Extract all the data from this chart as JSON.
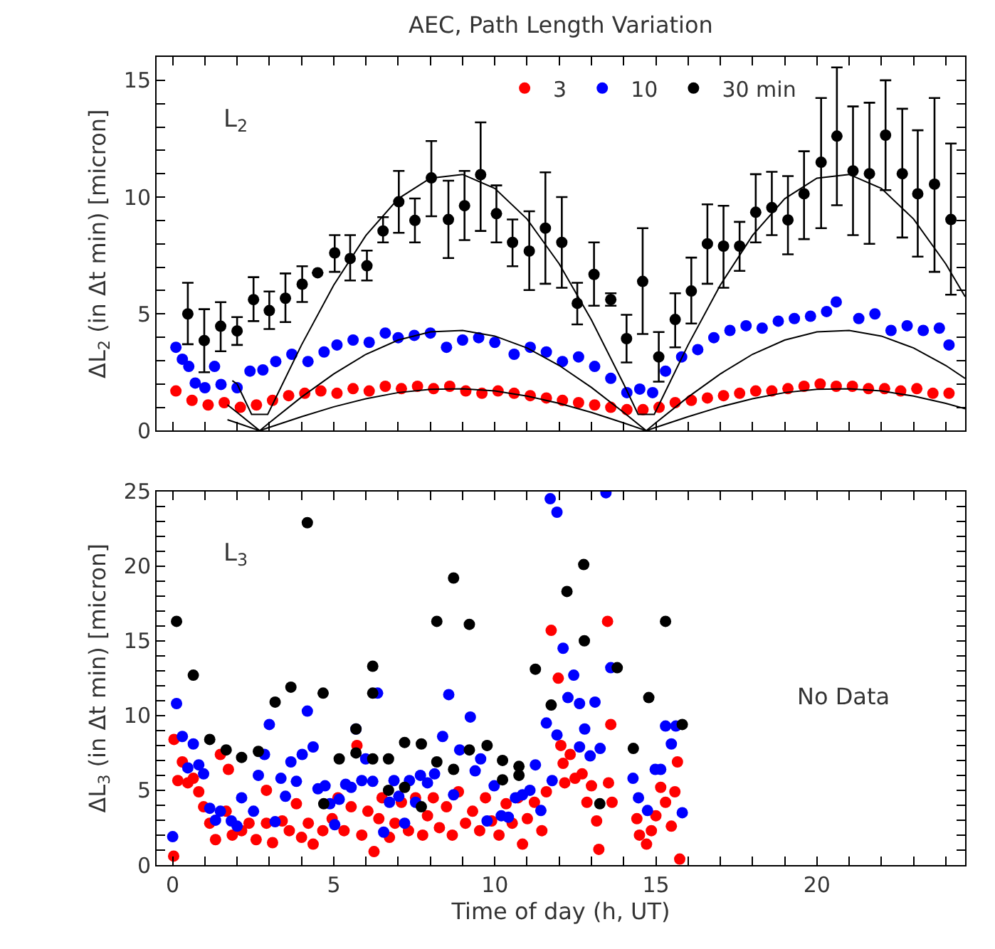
{
  "chart_data": [
    {
      "type": "scatter",
      "title": "AEC, Path Length Variation",
      "ylabel": "ΔL$_{2}$ (in Δt min) [micron]",
      "annotations": [
        "L$_{2}$"
      ],
      "legend": "top",
      "marker": "circle",
      "tick_labels": "y",
      "grid": false,
      "xlim": [
        -0.5,
        24.6
      ],
      "ylim": [
        0,
        16
      ],
      "xticks": [
        0,
        {
          "value": 1,
          "label": null
        },
        {
          "value": 2,
          "label": null
        },
        {
          "value": 3,
          "label": null
        },
        {
          "value": 4,
          "label": null
        },
        5,
        {
          "value": 6,
          "label": null
        },
        {
          "value": 7,
          "label": null
        },
        {
          "value": 8,
          "label": null
        },
        {
          "value": 9,
          "label": null
        },
        10,
        {
          "value": 11,
          "label": null
        },
        {
          "value": 12,
          "label": null
        },
        {
          "value": 13,
          "label": null
        },
        {
          "value": 14,
          "label": null
        },
        15,
        {
          "value": 16,
          "label": null
        },
        {
          "value": 17,
          "label": null
        },
        {
          "value": 18,
          "label": null
        },
        {
          "value": 19,
          "label": null
        },
        20,
        {
          "value": 21,
          "label": null
        },
        {
          "value": 22,
          "label": null
        },
        {
          "value": 23,
          "label": null
        },
        {
          "value": 24,
          "label": null
        }
      ],
      "yticks": [
        0,
        {
          "value": 1,
          "label": null
        },
        {
          "value": 2,
          "label": null
        },
        {
          "value": 3,
          "label": null
        },
        {
          "value": 4,
          "label": null
        },
        5,
        {
          "value": 6,
          "label": null
        },
        {
          "value": 7,
          "label": null
        },
        {
          "value": 8,
          "label": null
        },
        {
          "value": 9,
          "label": null
        },
        10,
        {
          "value": 11,
          "label": null
        },
        {
          "value": 12,
          "label": null
        },
        {
          "value": 13,
          "label": null
        },
        {
          "value": 14,
          "label": null
        },
        15,
        {
          "value": 16,
          "label": null
        }
      ],
      "series": [
        {
          "name": "3",
          "color": "#ff0000",
          "x": [
            0.1,
            0.6,
            1.1,
            1.6,
            2.1,
            2.6,
            3.1,
            3.6,
            4.1,
            4.6,
            5.1,
            5.6,
            6.1,
            6.6,
            7.1,
            7.6,
            8.1,
            8.6,
            9.1,
            9.6,
            10.1,
            10.6,
            11.1,
            11.6,
            12.1,
            12.6,
            13.1,
            13.6,
            14.1,
            14.6,
            15.1,
            15.6,
            16.1,
            16.6,
            17.1,
            17.6,
            18.1,
            18.6,
            19.1,
            19.6,
            20.1,
            20.6,
            21.1,
            21.6,
            22.1,
            22.6,
            23.1,
            23.6,
            24.1
          ],
          "values": [
            1.7,
            1.3,
            1.1,
            1.2,
            1.0,
            1.1,
            1.3,
            1.5,
            1.6,
            1.7,
            1.6,
            1.8,
            1.7,
            1.9,
            1.8,
            1.9,
            1.8,
            1.9,
            1.7,
            1.6,
            1.7,
            1.6,
            1.5,
            1.4,
            1.3,
            1.2,
            1.1,
            1.0,
            0.9,
            0.9,
            1.0,
            1.2,
            1.3,
            1.4,
            1.5,
            1.6,
            1.7,
            1.7,
            1.8,
            1.9,
            2.0,
            1.9,
            1.9,
            1.8,
            1.8,
            1.7,
            1.8,
            1.6,
            1.6
          ]
        },
        {
          "name": "10",
          "color": "#0000ff",
          "x": [
            0.1,
            0.3,
            0.5,
            0.7,
            1.0,
            1.3,
            1.5,
            2.0,
            2.4,
            2.8,
            3.2,
            3.7,
            4.2,
            4.7,
            5.1,
            5.6,
            6.1,
            6.6,
            7.0,
            7.5,
            8.0,
            8.5,
            9.0,
            9.5,
            10.0,
            10.6,
            11.1,
            11.6,
            12.1,
            12.6,
            13.1,
            13.6,
            14.1,
            14.5,
            14.9,
            15.3,
            15.8,
            16.3,
            16.8,
            17.3,
            17.8,
            18.3,
            18.8,
            19.3,
            19.8,
            20.3,
            20.6,
            21.3,
            21.8,
            22.3,
            22.8,
            23.3,
            23.8,
            24.1
          ],
          "values": [
            3.57,
            3.06,
            2.75,
            2.04,
            1.84,
            2.75,
            1.98,
            1.84,
            2.55,
            2.6,
            2.96,
            3.27,
            2.96,
            3.37,
            3.67,
            3.88,
            3.78,
            4.18,
            3.98,
            4.08,
            4.18,
            3.57,
            3.88,
            3.98,
            3.78,
            3.27,
            3.57,
            3.37,
            2.96,
            3.16,
            2.75,
            2.24,
            1.63,
            1.78,
            1.63,
            2.55,
            3.16,
            3.47,
            3.98,
            4.29,
            4.49,
            4.39,
            4.69,
            4.8,
            4.9,
            5.1,
            5.51,
            4.8,
            5.0,
            4.29,
            4.49,
            4.29,
            4.39,
            3.67
          ]
        },
        {
          "name": "30 min",
          "color": "#000000",
          "x": [
            0.47,
            0.98,
            1.49,
            2.0,
            2.51,
            3.0,
            3.5,
            4.02,
            4.5,
            5.03,
            5.51,
            6.03,
            6.53,
            7.02,
            7.52,
            8.03,
            8.56,
            9.06,
            9.56,
            10.05,
            10.55,
            11.07,
            11.57,
            12.08,
            12.56,
            13.08,
            13.6,
            14.09,
            14.59,
            15.09,
            15.6,
            16.1,
            16.6,
            17.1,
            17.6,
            18.1,
            18.6,
            19.1,
            19.6,
            20.13,
            20.62,
            21.12,
            21.63,
            22.13,
            22.65,
            23.13,
            23.65,
            24.16
          ],
          "values": [
            5.0,
            3.86,
            4.47,
            4.27,
            5.61,
            5.14,
            5.67,
            6.27,
            6.76,
            7.61,
            7.37,
            7.06,
            8.55,
            9.8,
            9.0,
            10.82,
            9.04,
            9.63,
            10.96,
            9.29,
            8.06,
            7.69,
            8.67,
            8.06,
            5.45,
            6.69,
            5.61,
            3.94,
            6.39,
            3.16,
            4.76,
            5.98,
            8.0,
            7.9,
            7.9,
            9.35,
            9.55,
            9.02,
            10.14,
            11.49,
            12.61,
            11.12,
            11.0,
            12.65,
            11.0,
            10.14,
            10.55,
            9.04
          ],
          "errors": [
            [
              3.7,
              6.33
            ],
            [
              2.5,
              5.2
            ],
            [
              3.4,
              5.5
            ],
            [
              3.67,
              4.86
            ],
            [
              4.69,
              6.57
            ],
            [
              4.35,
              5.96
            ],
            [
              4.65,
              6.73
            ],
            [
              5.51,
              7.04
            ],
            null,
            [
              6.8,
              8.37
            ],
            [
              6.43,
              8.37
            ],
            [
              6.43,
              7.71
            ],
            [
              8.06,
              9.14
            ],
            [
              8.47,
              11.12
            ],
            [
              8.06,
              9.94
            ],
            [
              9.18,
              12.4
            ],
            [
              7.39,
              10.7
            ],
            [
              8.16,
              11.12
            ],
            [
              8.55,
              13.2
            ],
            [
              8.06,
              10.5
            ],
            [
              7.04,
              9.04
            ],
            [
              6.02,
              9.39
            ],
            [
              6.29,
              11.06
            ],
            [
              6.12,
              10.0
            ],
            [
              4.55,
              6.33
            ],
            [
              5.35,
              8.06
            ],
            [
              5.35,
              5.88
            ],
            [
              2.92,
              4.96
            ],
            [
              4.14,
              8.67
            ],
            [
              2.1,
              4.22
            ],
            [
              3.57,
              5.88
            ],
            [
              4.59,
              7.41
            ],
            [
              6.29,
              9.69
            ],
            [
              6.12,
              9.63
            ],
            [
              6.84,
              8.94
            ],
            [
              8.06,
              10.98
            ],
            [
              8.37,
              11.08
            ],
            [
              7.55,
              10.9
            ],
            [
              8.2,
              11.96
            ],
            [
              8.67,
              14.24
            ],
            [
              9.65,
              15.55
            ],
            [
              8.37,
              13.88
            ],
            [
              8.0,
              14.04
            ],
            [
              10.3,
              15.0
            ],
            [
              8.27,
              13.78
            ],
            [
              7.45,
              12.86
            ],
            [
              6.8,
              14.24
            ],
            [
              5.82,
              12.29
            ]
          ]
        },
        {
          "type": "line",
          "marker": "none",
          "color": "#000000",
          "x": [
            1.7,
            2,
            2.7,
            3,
            4,
            5,
            6,
            7,
            8,
            9,
            10,
            11,
            12,
            13,
            14,
            14.7,
            15,
            16,
            17,
            18,
            19,
            20,
            21,
            22,
            23,
            24,
            24.6
          ],
          "values": [
            0.47,
            0.33,
            0,
            0.14,
            0.6,
            1.02,
            1.37,
            1.63,
            1.77,
            1.79,
            1.7,
            1.48,
            1.17,
            0.78,
            0.33,
            0,
            0.14,
            0.6,
            1.02,
            1.37,
            1.63,
            1.77,
            1.79,
            1.7,
            1.48,
            1.17,
            0.94
          ]
        },
        {
          "type": "line",
          "marker": "none",
          "color": "#000000",
          "x": [
            1.7,
            2,
            2.7,
            3,
            4,
            5,
            6,
            7,
            8,
            9,
            10,
            11,
            12,
            13,
            14,
            14.7,
            15,
            16,
            17,
            18,
            19,
            20,
            21,
            22,
            23,
            24,
            24.6
          ],
          "values": [
            1.11,
            0.78,
            0,
            0.34,
            1.44,
            2.43,
            3.27,
            3.88,
            4.23,
            4.29,
            4.05,
            3.54,
            2.79,
            1.85,
            0.78,
            0,
            0.34,
            1.44,
            2.43,
            3.27,
            3.88,
            4.23,
            4.29,
            4.05,
            3.54,
            2.79,
            2.24
          ]
        },
        {
          "type": "line",
          "marker": "none",
          "color": "#000000",
          "x": [
            1.85,
            2,
            2.45,
            2.95,
            4,
            5,
            6,
            7,
            8,
            9,
            10,
            11,
            12,
            13,
            14,
            14.45,
            14.95,
            16,
            17,
            18,
            19,
            20,
            21,
            22,
            23,
            24,
            24.6
          ],
          "values": [
            2.14,
            2.0,
            0.7,
            0.7,
            3.67,
            6.23,
            8.36,
            9.93,
            10.81,
            10.97,
            10.37,
            9.06,
            7.14,
            4.74,
            2.0,
            0.7,
            0.7,
            3.67,
            6.23,
            8.36,
            9.93,
            10.81,
            10.97,
            10.37,
            9.06,
            7.14,
            5.74
          ]
        }
      ]
    },
    {
      "type": "scatter",
      "xlabel": "Time of day (h, UT)",
      "ylabel": "ΔL$_{3}$ (in Δt min) [micron]",
      "annotations": [
        "L$_{3}$",
        "No Data"
      ],
      "marker": "circle",
      "grid": false,
      "xlim": [
        -0.5,
        24.6
      ],
      "ylim": [
        0,
        25
      ],
      "xticks": [
        0,
        {
          "value": 1,
          "label": null
        },
        {
          "value": 2,
          "label": null
        },
        {
          "value": 3,
          "label": null
        },
        {
          "value": 4,
          "label": null
        },
        5,
        {
          "value": 6,
          "label": null
        },
        {
          "value": 7,
          "label": null
        },
        {
          "value": 8,
          "label": null
        },
        {
          "value": 9,
          "label": null
        },
        10,
        {
          "value": 11,
          "label": null
        },
        {
          "value": 12,
          "label": null
        },
        {
          "value": 13,
          "label": null
        },
        {
          "value": 14,
          "label": null
        },
        15,
        {
          "value": 16,
          "label": null
        },
        {
          "value": 17,
          "label": null
        },
        {
          "value": 18,
          "label": null
        },
        {
          "value": 19,
          "label": null
        },
        20,
        {
          "value": 21,
          "label": null
        },
        {
          "value": 22,
          "label": null
        },
        {
          "value": 23,
          "label": null
        },
        {
          "value": 24,
          "label": null
        }
      ],
      "yticks": [
        0,
        {
          "value": 1,
          "label": null
        },
        {
          "value": 2,
          "label": null
        },
        {
          "value": 3,
          "label": null
        },
        {
          "value": 4,
          "label": null
        },
        5,
        {
          "value": 6,
          "label": null
        },
        {
          "value": 7,
          "label": null
        },
        {
          "value": 8,
          "label": null
        },
        {
          "value": 9,
          "label": null
        },
        10,
        {
          "value": 11,
          "label": null
        },
        {
          "value": 12,
          "label": null
        },
        {
          "value": 13,
          "label": null
        },
        {
          "value": 14,
          "label": null
        },
        15,
        {
          "value": 16,
          "label": null
        },
        {
          "value": 17,
          "label": null
        },
        {
          "value": 18,
          "label": null
        },
        {
          "value": 19,
          "label": null
        },
        20,
        {
          "value": 21,
          "label": null
        },
        {
          "value": 22,
          "label": null
        },
        {
          "value": 23,
          "label": null
        },
        {
          "value": 24,
          "label": null
        },
        25
      ],
      "series": [
        {
          "color": "#ff0000",
          "x": [
            0.04,
            0.03,
            0.16,
            0.3,
            0.47,
            0.64,
            0.81,
            0.96,
            1.15,
            1.33,
            1.48,
            1.66,
            1.73,
            1.85,
            2.14,
            2.37,
            2.59,
            2.91,
            2.91,
            3.1,
            3.4,
            3.62,
            3.84,
            4.0,
            4.21,
            4.36,
            4.66,
            4.95,
            5.13,
            5.32,
            5.54,
            5.72,
            5.87,
            6.06,
            6.25,
            6.4,
            6.5,
            6.73,
            6.9,
            7.1,
            7.32,
            7.54,
            7.76,
            7.91,
            8.09,
            8.28,
            8.5,
            8.68,
            8.87,
            9.09,
            9.31,
            9.53,
            9.71,
            9.9,
            10.13,
            10.35,
            10.54,
            10.72,
            10.86,
            11.01,
            11.23,
            11.46,
            11.6,
            11.75,
            11.97,
            12.05,
            12.17,
            12.12,
            12.34,
            12.49,
            12.71,
            12.86,
            13.0,
            13.16,
            13.23,
            13.5,
            13.6,
            13.53,
            13.64,
            14.41,
            14.49,
            14.71,
            14.86,
            15.0,
            15.15,
            15.3,
            15.48,
            15.59,
            15.67,
            15.74
          ],
          "values": [
            8.4,
            0.6,
            5.65,
            6.9,
            5.5,
            5.8,
            4.9,
            3.9,
            2.8,
            1.7,
            7.4,
            3.6,
            6.4,
            2.0,
            2.3,
            2.8,
            1.7,
            5.0,
            2.8,
            1.5,
            2.95,
            2.3,
            4.1,
            1.85,
            2.8,
            1.4,
            2.3,
            3.1,
            4.5,
            2.3,
            3.9,
            8.0,
            2.0,
            3.6,
            0.9,
            3.1,
            4.5,
            1.85,
            2.8,
            4.2,
            2.3,
            4.5,
            2.0,
            3.3,
            4.5,
            2.5,
            3.9,
            2.0,
            4.9,
            2.8,
            3.6,
            2.3,
            4.5,
            2.95,
            2.0,
            4.1,
            2.8,
            4.5,
            1.4,
            3.1,
            4.2,
            2.3,
            4.9,
            15.7,
            12.5,
            8.0,
            5.5,
            6.8,
            7.4,
            5.8,
            6.1,
            4.2,
            5.3,
            2.95,
            1.05,
            16.3,
            9.4,
            5.5,
            4.2,
            3.1,
            2.0,
            1.4,
            2.3,
            3.3,
            5.2,
            4.2,
            2.6,
            4.9,
            6.9,
            0.4
          ]
        },
        {
          "color": "#0000ff",
          "x": [
            0.0,
            0.12,
            0.3,
            0.47,
            0.64,
            0.81,
            0.96,
            1.15,
            1.33,
            1.48,
            1.82,
            2.0,
            2.14,
            2.51,
            2.66,
            2.85,
            3.0,
            3.18,
            3.36,
            3.5,
            3.67,
            3.84,
            4.02,
            4.18,
            4.36,
            4.51,
            4.73,
            4.88,
            5.03,
            5.17,
            5.37,
            5.54,
            5.69,
            5.87,
            5.99,
            6.21,
            6.36,
            6.55,
            6.73,
            6.87,
            7.02,
            7.2,
            7.35,
            7.54,
            7.69,
            7.91,
            8.13,
            8.38,
            8.57,
            8.72,
            8.91,
            9.24,
            9.39,
            9.56,
            9.76,
            9.98,
            10.2,
            10.42,
            10.64,
            10.86,
            11.09,
            11.26,
            11.43,
            11.6,
            11.72,
            11.93,
            12.12,
            12.27,
            13.45,
            12.45,
            12.63,
            13.11,
            11.93,
            12.79,
            12.63,
            13.27,
            12.96,
            13.6,
            11.78,
            14.29,
            14.46,
            14.74,
            14.98,
            15.15,
            15.3,
            15.62,
            15.48,
            15.82
          ],
          "values": [
            1.9,
            10.8,
            8.6,
            6.5,
            8.1,
            6.7,
            6.1,
            3.8,
            3.0,
            3.6,
            2.95,
            2.6,
            4.5,
            3.6,
            6.0,
            7.4,
            9.4,
            2.9,
            5.8,
            4.6,
            6.9,
            5.6,
            7.4,
            10.3,
            7.9,
            5.1,
            5.3,
            4.1,
            2.7,
            4.4,
            5.4,
            5.2,
            9.1,
            5.65,
            7.1,
            5.6,
            11.5,
            2.2,
            4.2,
            5.65,
            4.6,
            2.8,
            5.65,
            4.2,
            6.0,
            5.5,
            6.1,
            8.6,
            11.4,
            4.7,
            7.7,
            9.9,
            6.3,
            7.1,
            2.95,
            5.3,
            3.3,
            3.2,
            4.5,
            4.7,
            5.0,
            6.7,
            3.65,
            9.5,
            24.5,
            23.6,
            14.5,
            11.2,
            24.9,
            12.7,
            10.8,
            10.9,
            8.7,
            9.1,
            7.9,
            7.8,
            7.3,
            13.2,
            5.65,
            5.8,
            4.5,
            3.65,
            6.4,
            6.4,
            9.3,
            9.3,
            8.1,
            3.5
          ]
        },
        {
          "color": "#000000",
          "x": [
            0.12,
            0.64,
            1.15,
            1.66,
            2.14,
            2.66,
            3.18,
            3.67,
            4.18,
            4.67,
            4.69,
            5.17,
            5.69,
            5.69,
            6.21,
            6.21,
            6.21,
            6.7,
            6.7,
            7.2,
            7.2,
            7.72,
            7.72,
            8.2,
            8.2,
            8.72,
            8.72,
            9.21,
            9.21,
            9.76,
            10.24,
            10.24,
            10.75,
            10.75,
            11.26,
            11.75,
            12.24,
            12.76,
            12.78,
            13.8,
            13.26,
            14.3,
            14.78,
            15.3,
            15.82
          ],
          "values": [
            16.3,
            12.7,
            8.4,
            7.7,
            7.2,
            7.6,
            10.9,
            11.9,
            22.9,
            11.5,
            4.1,
            7.1,
            9.1,
            7.5,
            13.3,
            11.5,
            7.1,
            7.1,
            5.0,
            8.2,
            5.2,
            8.1,
            3.9,
            16.3,
            6.9,
            19.2,
            6.4,
            16.1,
            7.7,
            8.0,
            7.0,
            5.7,
            6.6,
            6.0,
            13.1,
            10.7,
            18.3,
            20.1,
            15.0,
            13.2,
            4.1,
            7.8,
            11.2,
            16.3,
            9.4
          ]
        }
      ]
    }
  ]
}
